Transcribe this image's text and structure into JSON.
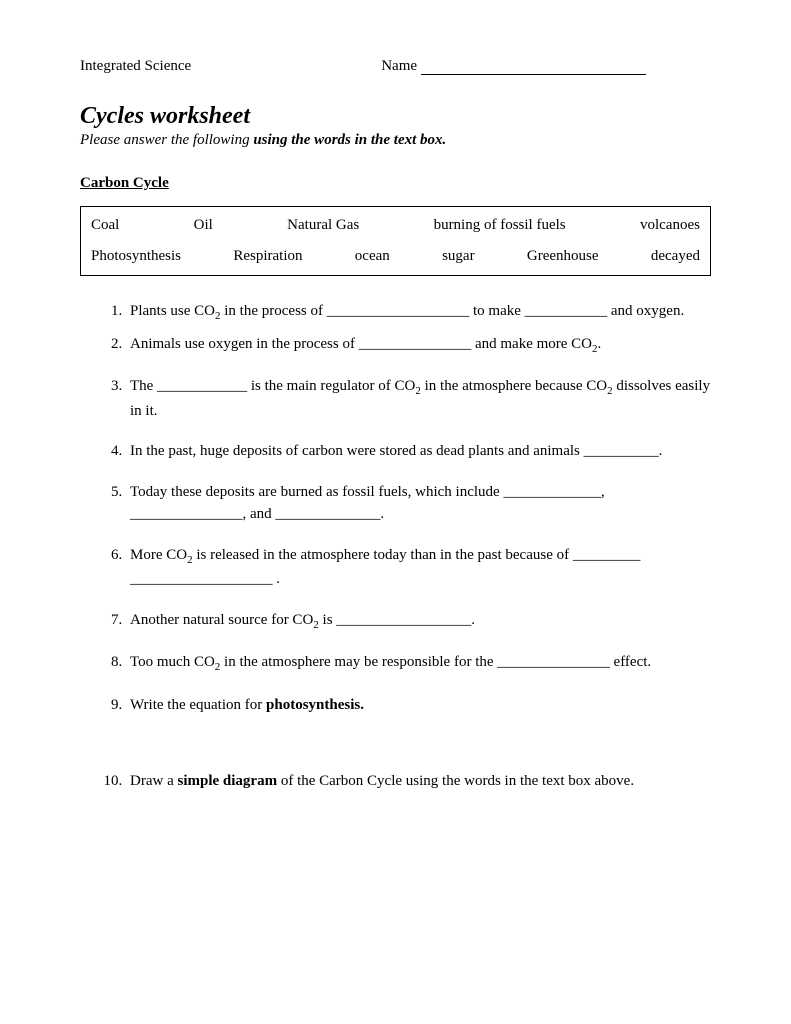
{
  "header": {
    "course": "Integrated Science",
    "name_label": "Name"
  },
  "title": "Cycles worksheet",
  "subtitle_prefix": "Please answer the following ",
  "subtitle_bold": "using the words in the text box.",
  "section_heading": "Carbon Cycle",
  "word_box": {
    "row1": {
      "w1": "Coal",
      "w2": "Oil",
      "w3": "Natural Gas",
      "w4": "burning of fossil fuels",
      "w5": "volcanoes"
    },
    "row2": {
      "w1": "Photosynthesis",
      "w2": "Respiration",
      "w3": "ocean",
      "w4": "sugar",
      "w5": "Greenhouse",
      "w6": "decayed"
    }
  },
  "questions": {
    "q1a": "Plants use CO",
    "q1b": " in the process of ___________________ to make ___________ and oxygen.",
    "q2a": "Animals use oxygen in the process of _______________ and make more CO",
    "q2b": ".",
    "q3a": "The ____________ is the main regulator of CO",
    "q3b": " in the atmosphere because CO",
    "q3c": " dissolves easily in it.",
    "q4": "In the past, huge deposits of carbon were stored as dead plants and animals __________.",
    "q5": "Today these deposits are burned as fossil fuels, which include _____________, _______________, and ______________.",
    "q6a": "More CO",
    "q6b": " is released in the atmosphere today than in the past because of _________ ___________________ .",
    "q7a": "Another natural source for CO",
    "q7b": " is __________________.",
    "q8a": "Too much CO",
    "q8b": " in the atmosphere may be responsible for the _______________ effect.",
    "q9a": "Write the equation for ",
    "q9b": "photosynthesis.",
    "q10a": "Draw a ",
    "q10b": "simple diagram",
    "q10c": " of the Carbon Cycle using the words in the text box above."
  },
  "subscript": "2"
}
